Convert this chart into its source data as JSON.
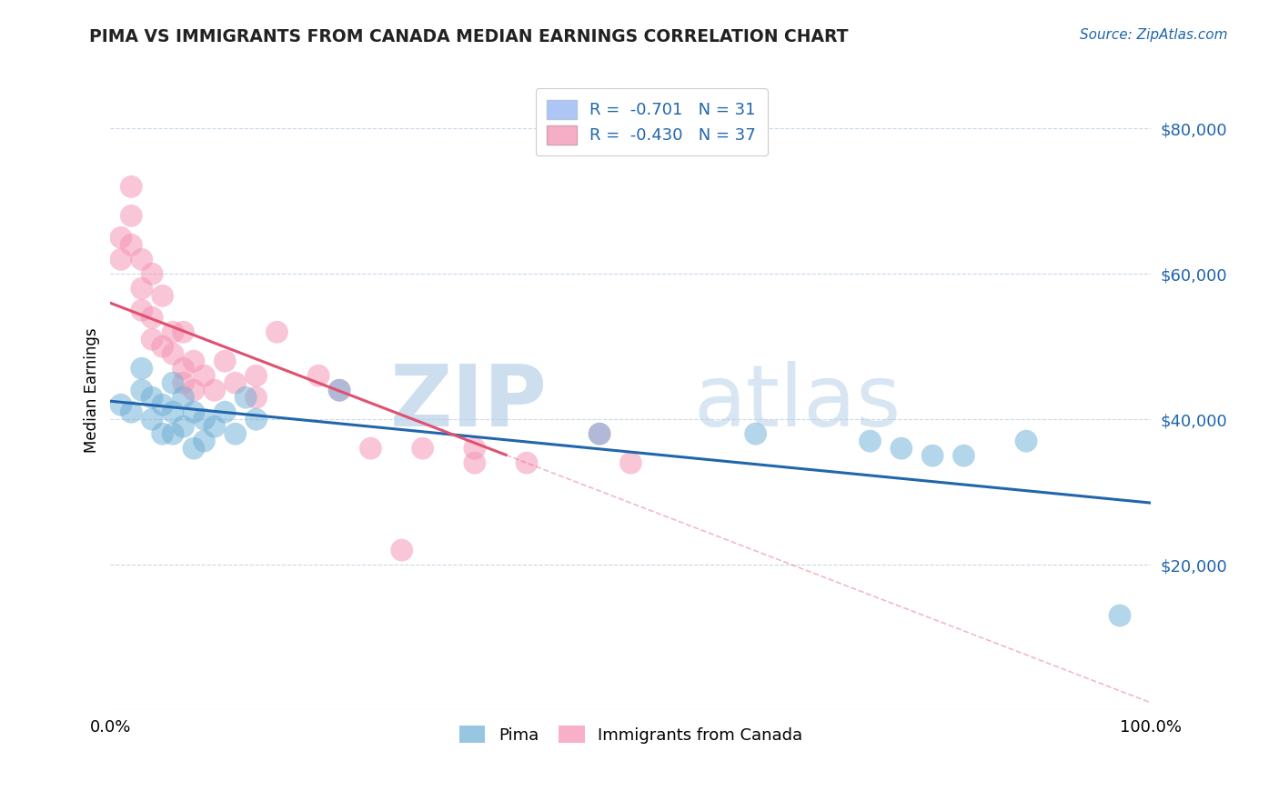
{
  "title": "PIMA VS IMMIGRANTS FROM CANADA MEDIAN EARNINGS CORRELATION CHART",
  "source": "Source: ZipAtlas.com",
  "ylabel": "Median Earnings",
  "y_ticks": [
    20000,
    40000,
    60000,
    80000
  ],
  "y_tick_labels": [
    "$20,000",
    "$40,000",
    "$60,000",
    "$80,000"
  ],
  "pima_color": "#6baed6",
  "canada_color": "#f48fb1",
  "pima_line_color": "#2166ac",
  "canada_line_color": "#e05070",
  "background_color": "#ffffff",
  "grid_color": "#c8d8e8",
  "legend_patch_pima": "#aec6f5",
  "legend_patch_canada": "#f5aec6",
  "legend_line1": "R =  -0.701   N = 31",
  "legend_line2": "R =  -0.430   N = 37",
  "pima_scatter": [
    [
      0.01,
      42000
    ],
    [
      0.02,
      41000
    ],
    [
      0.03,
      44000
    ],
    [
      0.03,
      47000
    ],
    [
      0.04,
      43000
    ],
    [
      0.04,
      40000
    ],
    [
      0.05,
      42000
    ],
    [
      0.05,
      38000
    ],
    [
      0.06,
      45000
    ],
    [
      0.06,
      41000
    ],
    [
      0.06,
      38000
    ],
    [
      0.07,
      43000
    ],
    [
      0.07,
      39000
    ],
    [
      0.08,
      41000
    ],
    [
      0.08,
      36000
    ],
    [
      0.09,
      40000
    ],
    [
      0.09,
      37000
    ],
    [
      0.1,
      39000
    ],
    [
      0.11,
      41000
    ],
    [
      0.12,
      38000
    ],
    [
      0.13,
      43000
    ],
    [
      0.14,
      40000
    ],
    [
      0.22,
      44000
    ],
    [
      0.47,
      38000
    ],
    [
      0.62,
      38000
    ],
    [
      0.73,
      37000
    ],
    [
      0.76,
      36000
    ],
    [
      0.79,
      35000
    ],
    [
      0.82,
      35000
    ],
    [
      0.88,
      37000
    ],
    [
      0.97,
      13000
    ]
  ],
  "canada_scatter": [
    [
      0.01,
      65000
    ],
    [
      0.01,
      62000
    ],
    [
      0.02,
      72000
    ],
    [
      0.02,
      68000
    ],
    [
      0.02,
      64000
    ],
    [
      0.03,
      62000
    ],
    [
      0.03,
      58000
    ],
    [
      0.03,
      55000
    ],
    [
      0.04,
      60000
    ],
    [
      0.04,
      54000
    ],
    [
      0.04,
      51000
    ],
    [
      0.05,
      57000
    ],
    [
      0.05,
      50000
    ],
    [
      0.06,
      52000
    ],
    [
      0.06,
      49000
    ],
    [
      0.07,
      52000
    ],
    [
      0.07,
      47000
    ],
    [
      0.07,
      45000
    ],
    [
      0.08,
      48000
    ],
    [
      0.08,
      44000
    ],
    [
      0.09,
      46000
    ],
    [
      0.1,
      44000
    ],
    [
      0.11,
      48000
    ],
    [
      0.12,
      45000
    ],
    [
      0.14,
      46000
    ],
    [
      0.14,
      43000
    ],
    [
      0.16,
      52000
    ],
    [
      0.2,
      46000
    ],
    [
      0.22,
      44000
    ],
    [
      0.25,
      36000
    ],
    [
      0.3,
      36000
    ],
    [
      0.35,
      34000
    ],
    [
      0.4,
      34000
    ],
    [
      0.5,
      34000
    ],
    [
      0.28,
      22000
    ],
    [
      0.35,
      36000
    ],
    [
      0.47,
      38000
    ]
  ],
  "xlim": [
    0.0,
    1.0
  ],
  "ylim": [
    0,
    88000
  ],
  "pima_reg": [
    42500,
    -14000
  ],
  "canada_reg": [
    56000,
    -55000
  ]
}
